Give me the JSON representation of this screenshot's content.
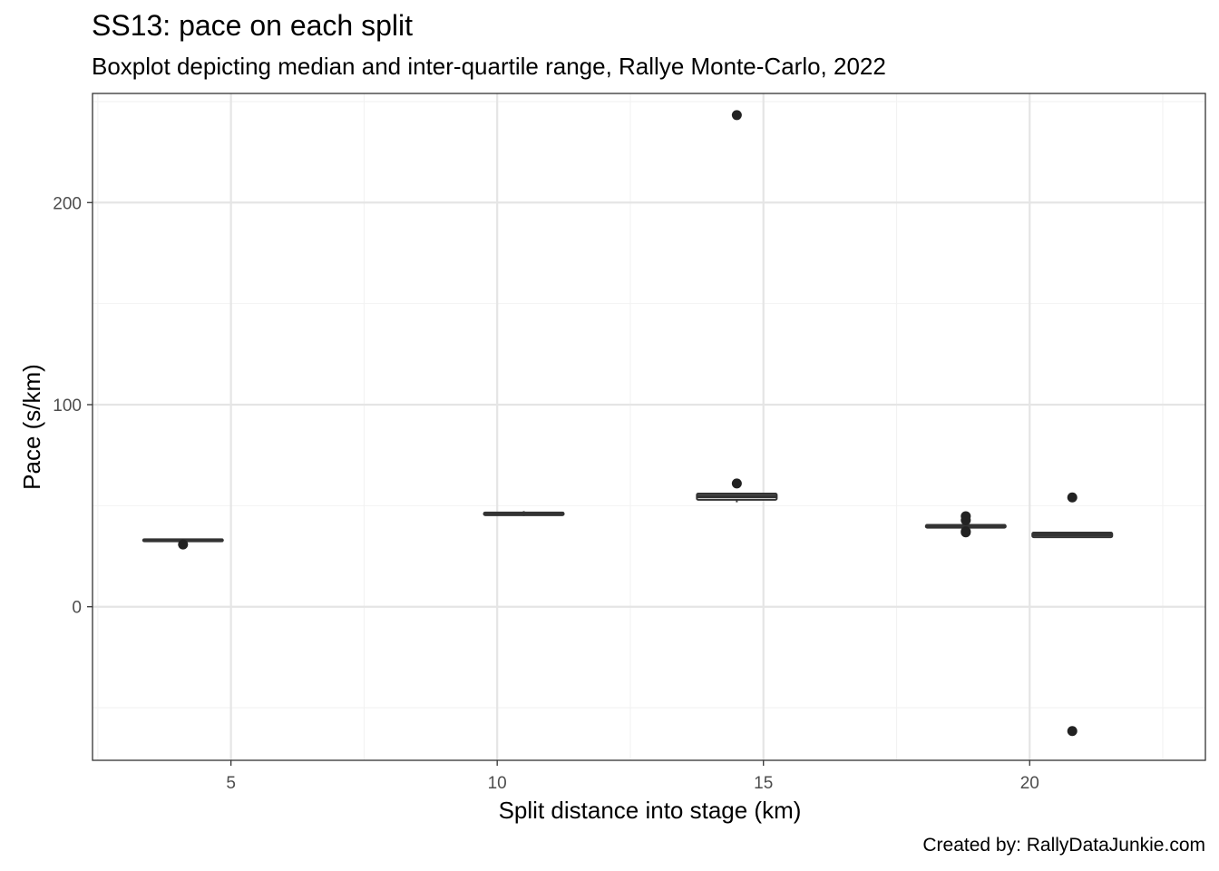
{
  "title": "SS13: pace on each split",
  "subtitle": "Boxplot depicting median and inter-quartile range, Rallye Monte-Carlo, 2022",
  "caption": "Created by: RallyDataJunkie.com",
  "chart_data": {
    "type": "boxplot",
    "xlabel": "Split distance into stage (km)",
    "ylabel": "Pace (s/km)",
    "xlim": [
      2.4,
      23.3
    ],
    "ylim": [
      -76,
      254
    ],
    "x_ticks": [
      5,
      10,
      15,
      20
    ],
    "y_ticks": [
      0,
      100,
      200
    ],
    "grid": true,
    "legend": "none",
    "colors": {
      "box_line": "#333333",
      "box_fill": "#ffffff",
      "outlier": "#222222",
      "grid_major": "#e5e5e5",
      "grid_minor": "#f2f2f2",
      "panel_border": "#333333",
      "axis_text": "#4d4d4d"
    },
    "boxes": [
      {
        "x": 4.1,
        "lower": 32.4,
        "q1": 32.4,
        "median": 32.9,
        "q3": 33.4,
        "upper": 33.4,
        "outliers": [
          30.8
        ]
      },
      {
        "x": 10.5,
        "lower": 44.9,
        "q1": 45.3,
        "median": 46.1,
        "q3": 46.6,
        "upper": 47.3,
        "outliers": []
      },
      {
        "x": 14.5,
        "lower": 51.7,
        "q1": 52.9,
        "median": 54.6,
        "q3": 56.0,
        "upper": 56.0,
        "outliers": [
          61.0,
          243.3
        ]
      },
      {
        "x": 18.8,
        "lower": 39.1,
        "q1": 39.1,
        "median": 39.9,
        "q3": 40.5,
        "upper": 40.5,
        "outliers": [
          36.8,
          37.3,
          42.8,
          44.8
        ]
      },
      {
        "x": 20.8,
        "lower": 34.4,
        "q1": 34.4,
        "median": 35.7,
        "q3": 36.7,
        "upper": 36.7,
        "outliers": [
          54.1,
          -61.5
        ]
      }
    ],
    "box_width_km": 1.5
  }
}
